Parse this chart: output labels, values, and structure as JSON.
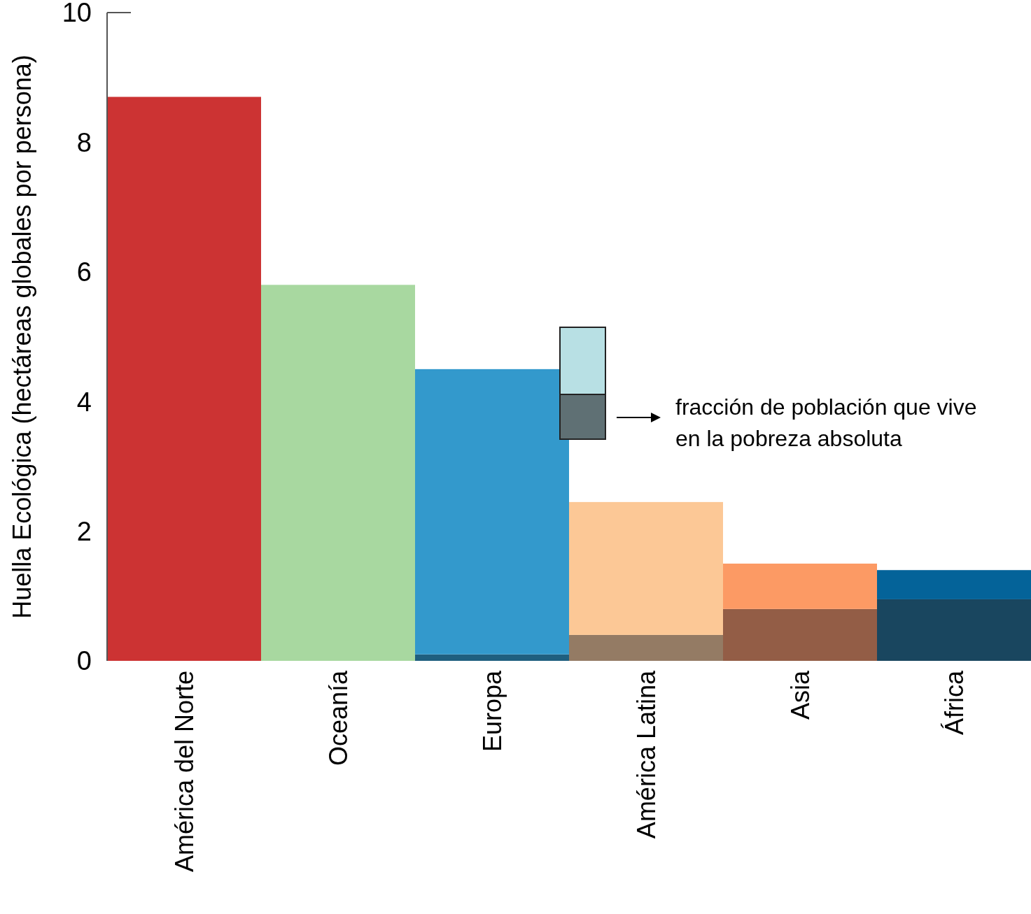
{
  "chart_data": {
    "type": "bar",
    "stacked": true,
    "ylabel": "Huella Ecológica (hectáreas globales por persona)",
    "categories": [
      "América del Norte",
      "Oceanía",
      "Europa",
      "América Latina",
      "Asia",
      "África"
    ],
    "series": [
      {
        "name": "fracción de población que vive en la pobreza absoluta",
        "color": "#5f7074",
        "colors": [
          "#8a2222",
          "#5f8f5a",
          "#1f5f7f",
          "#947b64",
          "#935d46",
          "#19465f"
        ],
        "values": [
          0,
          0,
          0.1,
          0.4,
          0.8,
          0.95
        ]
      },
      {
        "color": "#b8e0e4",
        "colors": [
          "#cc3333",
          "#a8d8a0",
          "#3399cc",
          "#fcc896",
          "#fc9a64",
          "#046399"
        ],
        "values": [
          8.7,
          5.8,
          4.4,
          2.05,
          0.7,
          0.45
        ]
      }
    ],
    "ylim": [
      0,
      10
    ],
    "yticks": [
      0,
      2,
      4,
      6,
      8,
      10
    ],
    "grid": false,
    "legend": "right"
  }
}
